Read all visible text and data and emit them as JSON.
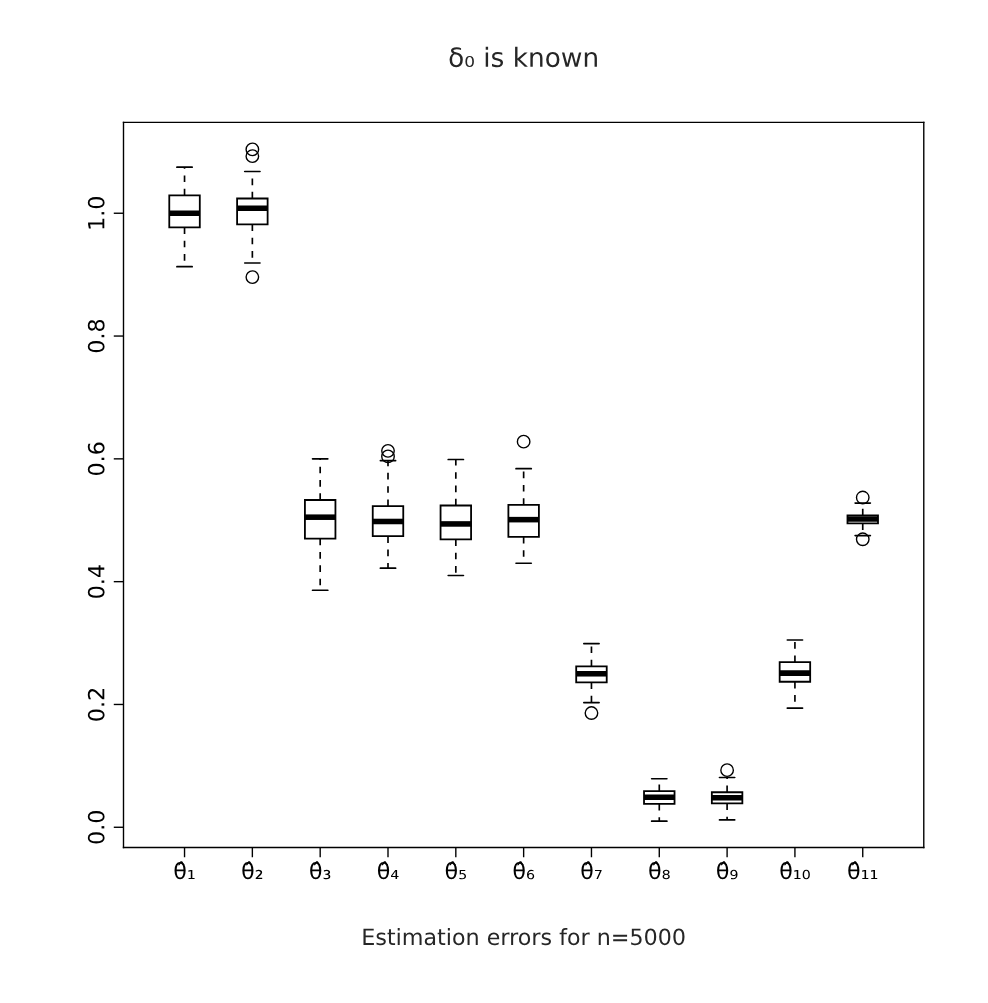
{
  "chart_data": {
    "type": "box",
    "title": "δ₀ is known",
    "xlabel": "Estimation errors for n=5000",
    "categories": [
      "θ̂₁",
      "θ̂₂",
      "θ̂₃",
      "θ̂₄",
      "θ̂₅",
      "θ̂₆",
      "θ̂₇",
      "θ̂₈",
      "θ̂₉",
      "θ̂₁₀",
      "θ̂₁₁"
    ],
    "boxes": [
      {
        "low": 0.913,
        "q1": 0.977,
        "median": 1.0,
        "q3": 1.029,
        "high": 1.075
      },
      {
        "low": 0.919,
        "q1": 0.982,
        "median": 1.008,
        "q3": 1.024,
        "high": 1.068,
        "outliers": [
          1.104,
          1.093,
          0.896
        ]
      },
      {
        "low": 0.386,
        "q1": 0.47,
        "median": 0.505,
        "q3": 0.533,
        "high": 0.6
      },
      {
        "low": 0.422,
        "q1": 0.474,
        "median": 0.498,
        "q3": 0.523,
        "high": 0.597,
        "outliers": [
          0.613,
          0.604
        ]
      },
      {
        "low": 0.41,
        "q1": 0.469,
        "median": 0.494,
        "q3": 0.524,
        "high": 0.599
      },
      {
        "low": 0.43,
        "q1": 0.473,
        "median": 0.501,
        "q3": 0.525,
        "high": 0.584,
        "outliers": [
          0.628
        ]
      },
      {
        "low": 0.203,
        "q1": 0.236,
        "median": 0.25,
        "q3": 0.262,
        "high": 0.299,
        "outliers": [
          0.186
        ]
      },
      {
        "low": 0.01,
        "q1": 0.038,
        "median": 0.049,
        "q3": 0.059,
        "high": 0.079
      },
      {
        "low": 0.012,
        "q1": 0.039,
        "median": 0.048,
        "q3": 0.057,
        "high": 0.081,
        "outliers": [
          0.093
        ]
      },
      {
        "low": 0.194,
        "q1": 0.237,
        "median": 0.251,
        "q3": 0.269,
        "high": 0.305
      },
      {
        "low": 0.475,
        "q1": 0.495,
        "median": 0.502,
        "q3": 0.508,
        "high": 0.528,
        "outliers": [
          0.537,
          0.469
        ]
      }
    ],
    "ylim": [
      -0.033,
      1.148
    ],
    "yticks": [
      {
        "value": 0,
        "label": "0.0"
      },
      0.2,
      0.4,
      0.6,
      0.8,
      {
        "value": 1,
        "label": "1.0"
      }
    ],
    "grid": false
  }
}
